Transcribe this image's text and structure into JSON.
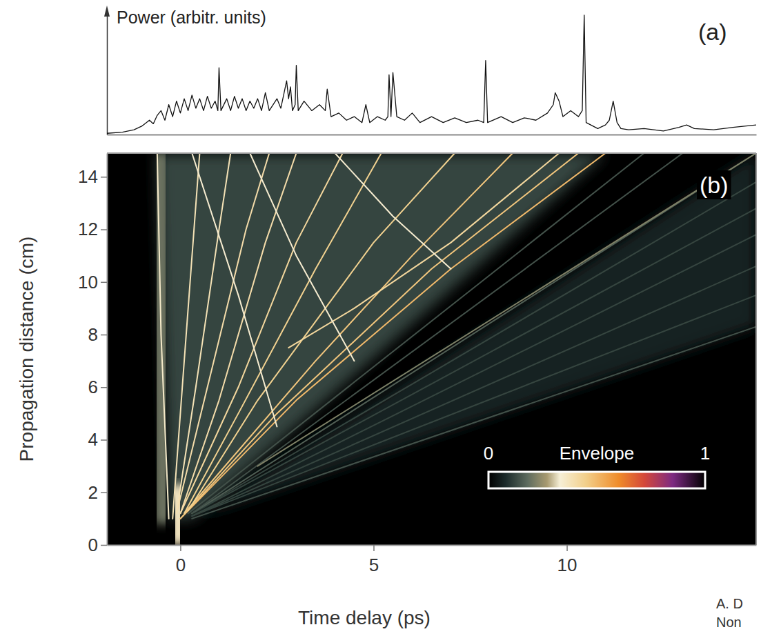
{
  "chart_data": [
    {
      "type": "line",
      "panel_label": "(a)",
      "ylabel": "Power (arbitr. units)",
      "color": "#111111",
      "tick_labels": false,
      "xlim": [
        -1.9,
        14.9
      ],
      "ylim": [
        0,
        1
      ],
      "x": [
        -1.9,
        -1.5,
        -1.2,
        -1.0,
        -0.8,
        -0.7,
        -0.6,
        -0.5,
        -0.4,
        -0.3,
        -0.2,
        -0.1,
        0,
        0.1,
        0.2,
        0.3,
        0.4,
        0.5,
        0.6,
        0.7,
        0.8,
        0.9,
        0.97,
        1.0,
        1.05,
        1.2,
        1.3,
        1.4,
        1.5,
        1.6,
        1.7,
        1.8,
        1.9,
        2.0,
        2.1,
        2.2,
        2.3,
        2.5,
        2.6,
        2.75,
        2.8,
        2.85,
        2.9,
        2.97,
        3.0,
        3.05,
        3.2,
        3.4,
        3.6,
        3.75,
        3.8,
        3.9,
        4.1,
        4.3,
        4.5,
        4.7,
        4.8,
        4.9,
        5.1,
        5.3,
        5.37,
        5.4,
        5.45,
        5.5,
        5.6,
        5.8,
        6.0,
        6.2,
        6.5,
        6.8,
        7.1,
        7.4,
        7.7,
        7.85,
        7.9,
        7.95,
        8.3,
        8.6,
        8.9,
        9.2,
        9.5,
        9.65,
        9.7,
        9.8,
        9.9,
        10.1,
        10.3,
        10.4,
        10.45,
        10.5,
        10.8,
        11.0,
        11.1,
        11.2,
        11.3,
        11.4,
        11.6,
        12.0,
        12.5,
        12.9,
        13.1,
        13.3,
        13.8,
        14.3,
        14.9
      ],
      "values": [
        0.01,
        0.02,
        0.04,
        0.07,
        0.12,
        0.09,
        0.16,
        0.2,
        0.12,
        0.25,
        0.15,
        0.28,
        0.18,
        0.3,
        0.2,
        0.33,
        0.22,
        0.3,
        0.2,
        0.32,
        0.22,
        0.28,
        0.2,
        0.56,
        0.2,
        0.3,
        0.2,
        0.32,
        0.22,
        0.3,
        0.2,
        0.28,
        0.22,
        0.3,
        0.2,
        0.35,
        0.2,
        0.3,
        0.22,
        0.45,
        0.3,
        0.4,
        0.2,
        0.25,
        0.58,
        0.2,
        0.28,
        0.2,
        0.25,
        0.2,
        0.38,
        0.15,
        0.18,
        0.12,
        0.15,
        0.1,
        0.25,
        0.1,
        0.15,
        0.12,
        0.15,
        0.5,
        0.15,
        0.52,
        0.15,
        0.12,
        0.18,
        0.1,
        0.15,
        0.1,
        0.14,
        0.1,
        0.12,
        0.1,
        0.62,
        0.1,
        0.15,
        0.1,
        0.14,
        0.12,
        0.18,
        0.25,
        0.35,
        0.28,
        0.15,
        0.2,
        0.15,
        0.2,
        1.0,
        0.1,
        0.05,
        0.08,
        0.12,
        0.28,
        0.1,
        0.05,
        0.04,
        0.05,
        0.03,
        0.06,
        0.08,
        0.05,
        0.04,
        0.06,
        0.08
      ]
    },
    {
      "type": "line",
      "panel_label": "(b)",
      "xlabel": "Time delay (ps)",
      "ylabel": "Propagation distance (cm)",
      "xlim": [
        -1.9,
        14.9
      ],
      "ylim": [
        0,
        14.9
      ],
      "xticks": [
        0,
        5,
        10
      ],
      "yticks": [
        0,
        2,
        4,
        6,
        8,
        10,
        12,
        14
      ],
      "colorbar": {
        "label": "Envelope",
        "range": [
          0,
          1
        ],
        "ticks": [
          0,
          1
        ],
        "stops": [
          0,
          0.08,
          0.18,
          0.27,
          0.33,
          0.45,
          0.6,
          0.72,
          0.85,
          1
        ],
        "colors": [
          "#000000",
          "#1c2b2b",
          "#5d6b5e",
          "#a89a70",
          "#f6efd6",
          "#f2cf8a",
          "#ef8c2a",
          "#d4483a",
          "#7d2a82",
          "#000000"
        ]
      },
      "regions": [
        {
          "x": [
            0.3,
            14.9,
            14.9
          ],
          "values": [
            1.0,
            14.9,
            8.3
          ],
          "envelope": 0.06
        },
        {
          "x": [
            -0.3,
            -0.6,
            11.0,
            0.3
          ],
          "values": [
            1.0,
            14.9,
            14.9,
            1.0
          ],
          "envelope": 0.12
        }
      ],
      "series": [
        {
          "x": [
            -0.45,
            -0.5,
            -0.55
          ],
          "values": [
            0.8,
            8.0,
            14.9
          ],
          "envelope": 0.2,
          "line_style": "broad"
        },
        {
          "x": [
            -0.05,
            -0.05,
            -0.1
          ],
          "values": [
            0,
            1.0,
            2.3
          ],
          "envelope": 0.36,
          "line_style": "broad"
        },
        {
          "x": [
            0.3,
            14.9
          ],
          "values": [
            1.0,
            8.3
          ],
          "envelope": 0.14,
          "line_style": "solid"
        },
        {
          "x": [
            0.3,
            14.9
          ],
          "values": [
            1.1,
            9.5
          ],
          "envelope": 0.12,
          "line_style": "solid"
        },
        {
          "x": [
            0.3,
            14.9
          ],
          "values": [
            1.1,
            10.6
          ],
          "envelope": 0.12,
          "line_style": "solid"
        },
        {
          "x": [
            0.3,
            14.9
          ],
          "values": [
            1.1,
            11.8
          ],
          "envelope": 0.12,
          "line_style": "solid"
        },
        {
          "x": [
            0.3,
            14.9
          ],
          "values": [
            1.2,
            12.8
          ],
          "envelope": 0.12,
          "line_style": "solid"
        },
        {
          "x": [
            0.3,
            14.9
          ],
          "values": [
            1.2,
            13.8
          ],
          "envelope": 0.12,
          "line_style": "solid"
        },
        {
          "x": [
            0.3,
            14.9
          ],
          "values": [
            1.2,
            14.9
          ],
          "envelope": 0.16,
          "line_style": "solid"
        },
        {
          "x": [
            0.3,
            13.0
          ],
          "values": [
            1.2,
            14.9
          ],
          "envelope": 0.14,
          "line_style": "solid"
        },
        {
          "x": [
            0.2,
            12.0
          ],
          "values": [
            1.2,
            14.9
          ],
          "envelope": 0.14,
          "line_style": "solid"
        },
        {
          "x": [
            2.0,
            14.9
          ],
          "values": [
            3.0,
            14.9
          ],
          "envelope": 0.22,
          "line_style": "solid"
        },
        {
          "x": [
            0,
            3.0,
            7.0,
            11.0
          ],
          "values": [
            1.0,
            5.5,
            10.5,
            14.9
          ],
          "envelope": 0.5,
          "line_style": "solid"
        },
        {
          "x": [
            0,
            2.5,
            6.5,
            10.3
          ],
          "values": [
            1.0,
            5.0,
            10.5,
            14.9
          ],
          "envelope": 0.47,
          "line_style": "solid"
        },
        {
          "x": [
            0.1,
            3.5,
            6.0,
            8.6
          ],
          "values": [
            1.2,
            7.0,
            11.0,
            14.9
          ],
          "envelope": 0.47,
          "line_style": "solid"
        },
        {
          "x": [
            0.2,
            2.0,
            5.0,
            7.1
          ],
          "values": [
            1.3,
            5.5,
            11.5,
            14.9
          ],
          "envelope": 0.44,
          "line_style": "solid"
        },
        {
          "x": [
            0.1,
            1.5,
            3.5,
            5.2
          ],
          "values": [
            1.2,
            5.0,
            10.5,
            14.9
          ],
          "envelope": 0.44,
          "line_style": "solid"
        },
        {
          "x": [
            0,
            1.5,
            3.0,
            4.2
          ],
          "values": [
            1.2,
            6.0,
            11.5,
            14.9
          ],
          "envelope": 0.42,
          "line_style": "solid"
        },
        {
          "x": [
            0,
            1.0,
            2.2,
            3.0
          ],
          "values": [
            1.2,
            5.5,
            11.5,
            14.9
          ],
          "envelope": 0.4,
          "line_style": "solid"
        },
        {
          "x": [
            -0.1,
            0.7,
            1.7,
            2.3
          ],
          "values": [
            1.2,
            6.0,
            12.0,
            14.9
          ],
          "envelope": 0.4,
          "line_style": "solid"
        },
        {
          "x": [
            -0.1,
            0.4,
            1.0,
            1.3
          ],
          "values": [
            1.2,
            6.0,
            12.0,
            14.9
          ],
          "envelope": 0.38,
          "line_style": "solid"
        },
        {
          "x": [
            -0.2,
            0.1,
            0.5
          ],
          "values": [
            1.0,
            7.0,
            14.9
          ],
          "envelope": 0.38,
          "line_style": "solid"
        },
        {
          "x": [
            -0.3,
            -0.5,
            -0.6
          ],
          "values": [
            1.0,
            8.0,
            14.9
          ],
          "envelope": 0.35,
          "line_style": "solid"
        },
        {
          "x": [
            2.8,
            4.5,
            7.0,
            9.8
          ],
          "values": [
            7.5,
            9.0,
            11.5,
            14.9
          ],
          "envelope": 0.42,
          "line_style": "solid"
        },
        {
          "x": [
            7.0,
            5.5,
            4.0
          ],
          "values": [
            10.5,
            12.5,
            14.9
          ],
          "envelope": 0.34,
          "line_style": "solid"
        },
        {
          "x": [
            4.5,
            3.0,
            1.8
          ],
          "values": [
            7.0,
            11.0,
            14.9
          ],
          "envelope": 0.34,
          "line_style": "solid"
        },
        {
          "x": [
            2.5,
            1.5,
            0.3
          ],
          "values": [
            4.5,
            9.5,
            14.9
          ],
          "envelope": 0.34,
          "line_style": "solid"
        }
      ],
      "annotations": [
        "A. D",
        "Non"
      ]
    }
  ]
}
